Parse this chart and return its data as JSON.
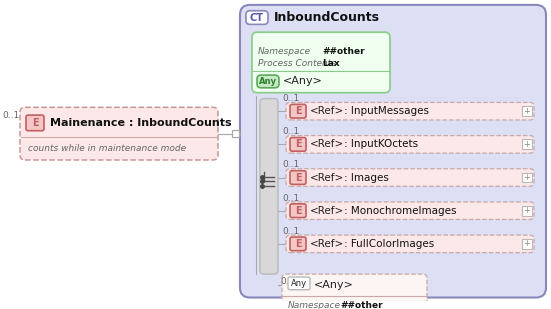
{
  "bg_outer": "#ffffff",
  "title_main": "InboundCounts",
  "any_top_label": "<Any>",
  "any_top_ns": "##other",
  "any_top_pc": "Lax",
  "left_box_label": "Mainenance : InboundCounts",
  "left_box_sub": "counts while in maintenance mode",
  "left_multiplicity": "0..1",
  "ref_items": [
    {
      "mult": "0..1",
      "label": ": InputMessages"
    },
    {
      "mult": "0..1",
      "label": ": InputKOctets"
    },
    {
      "mult": "0..1",
      "label": ": Images"
    },
    {
      "mult": "0..1",
      "label": ": MonochromeImages"
    },
    {
      "mult": "0..1",
      "label": ": FullColorImages"
    }
  ],
  "any_bottom_label": "<Any>",
  "any_bottom_ns": "##other",
  "any_bottom_mult": "0..*",
  "e_box_color": "#f5c6c6",
  "e_box_border": "#c06060",
  "any_box_color": "#c8e8c8",
  "any_box_border": "#5aaa5a",
  "any_bottom_box_color": "#fdf4f4",
  "any_bottom_box_border": "#c8a8a8",
  "ref_box_color": "#fce8e8",
  "ref_box_border": "#c8a8a8",
  "left_dashed_color": "#fce8e8",
  "left_dashed_border": "#c89898",
  "ct_bg": "#dde0f5",
  "ct_border": "#8888bb",
  "gray_bar_color": "#d8d8d8",
  "gray_bar_border": "#b8b8b8",
  "connector_color": "#aaaaaa",
  "text_color": "#222222",
  "italic_color": "#666666",
  "bold_text": "#111111"
}
